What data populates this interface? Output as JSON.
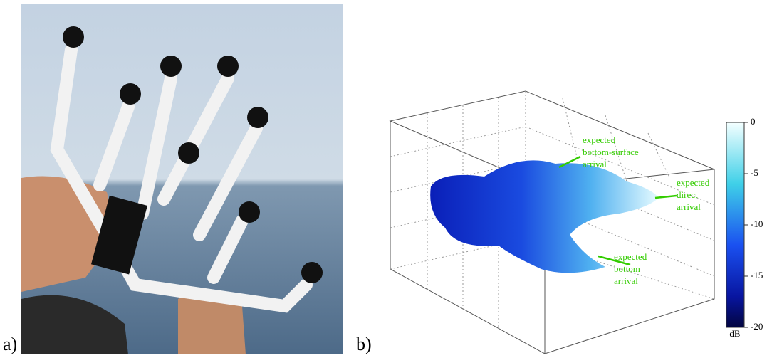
{
  "panels": [
    {
      "label": "a)"
    },
    {
      "label": "b)",
      "annotations": [
        {
          "lines": [
            "expected",
            "bottom-surface",
            "arrival"
          ]
        },
        {
          "lines": [
            "expected",
            "direct",
            "arrival"
          ]
        },
        {
          "lines": [
            "expected",
            "bottom",
            "arrival"
          ]
        }
      ],
      "colorbar": {
        "label": "dB",
        "lim": [
          -20,
          0
        ],
        "ticks": [
          0,
          -5,
          -10,
          -15,
          -20
        ]
      }
    }
  ]
}
